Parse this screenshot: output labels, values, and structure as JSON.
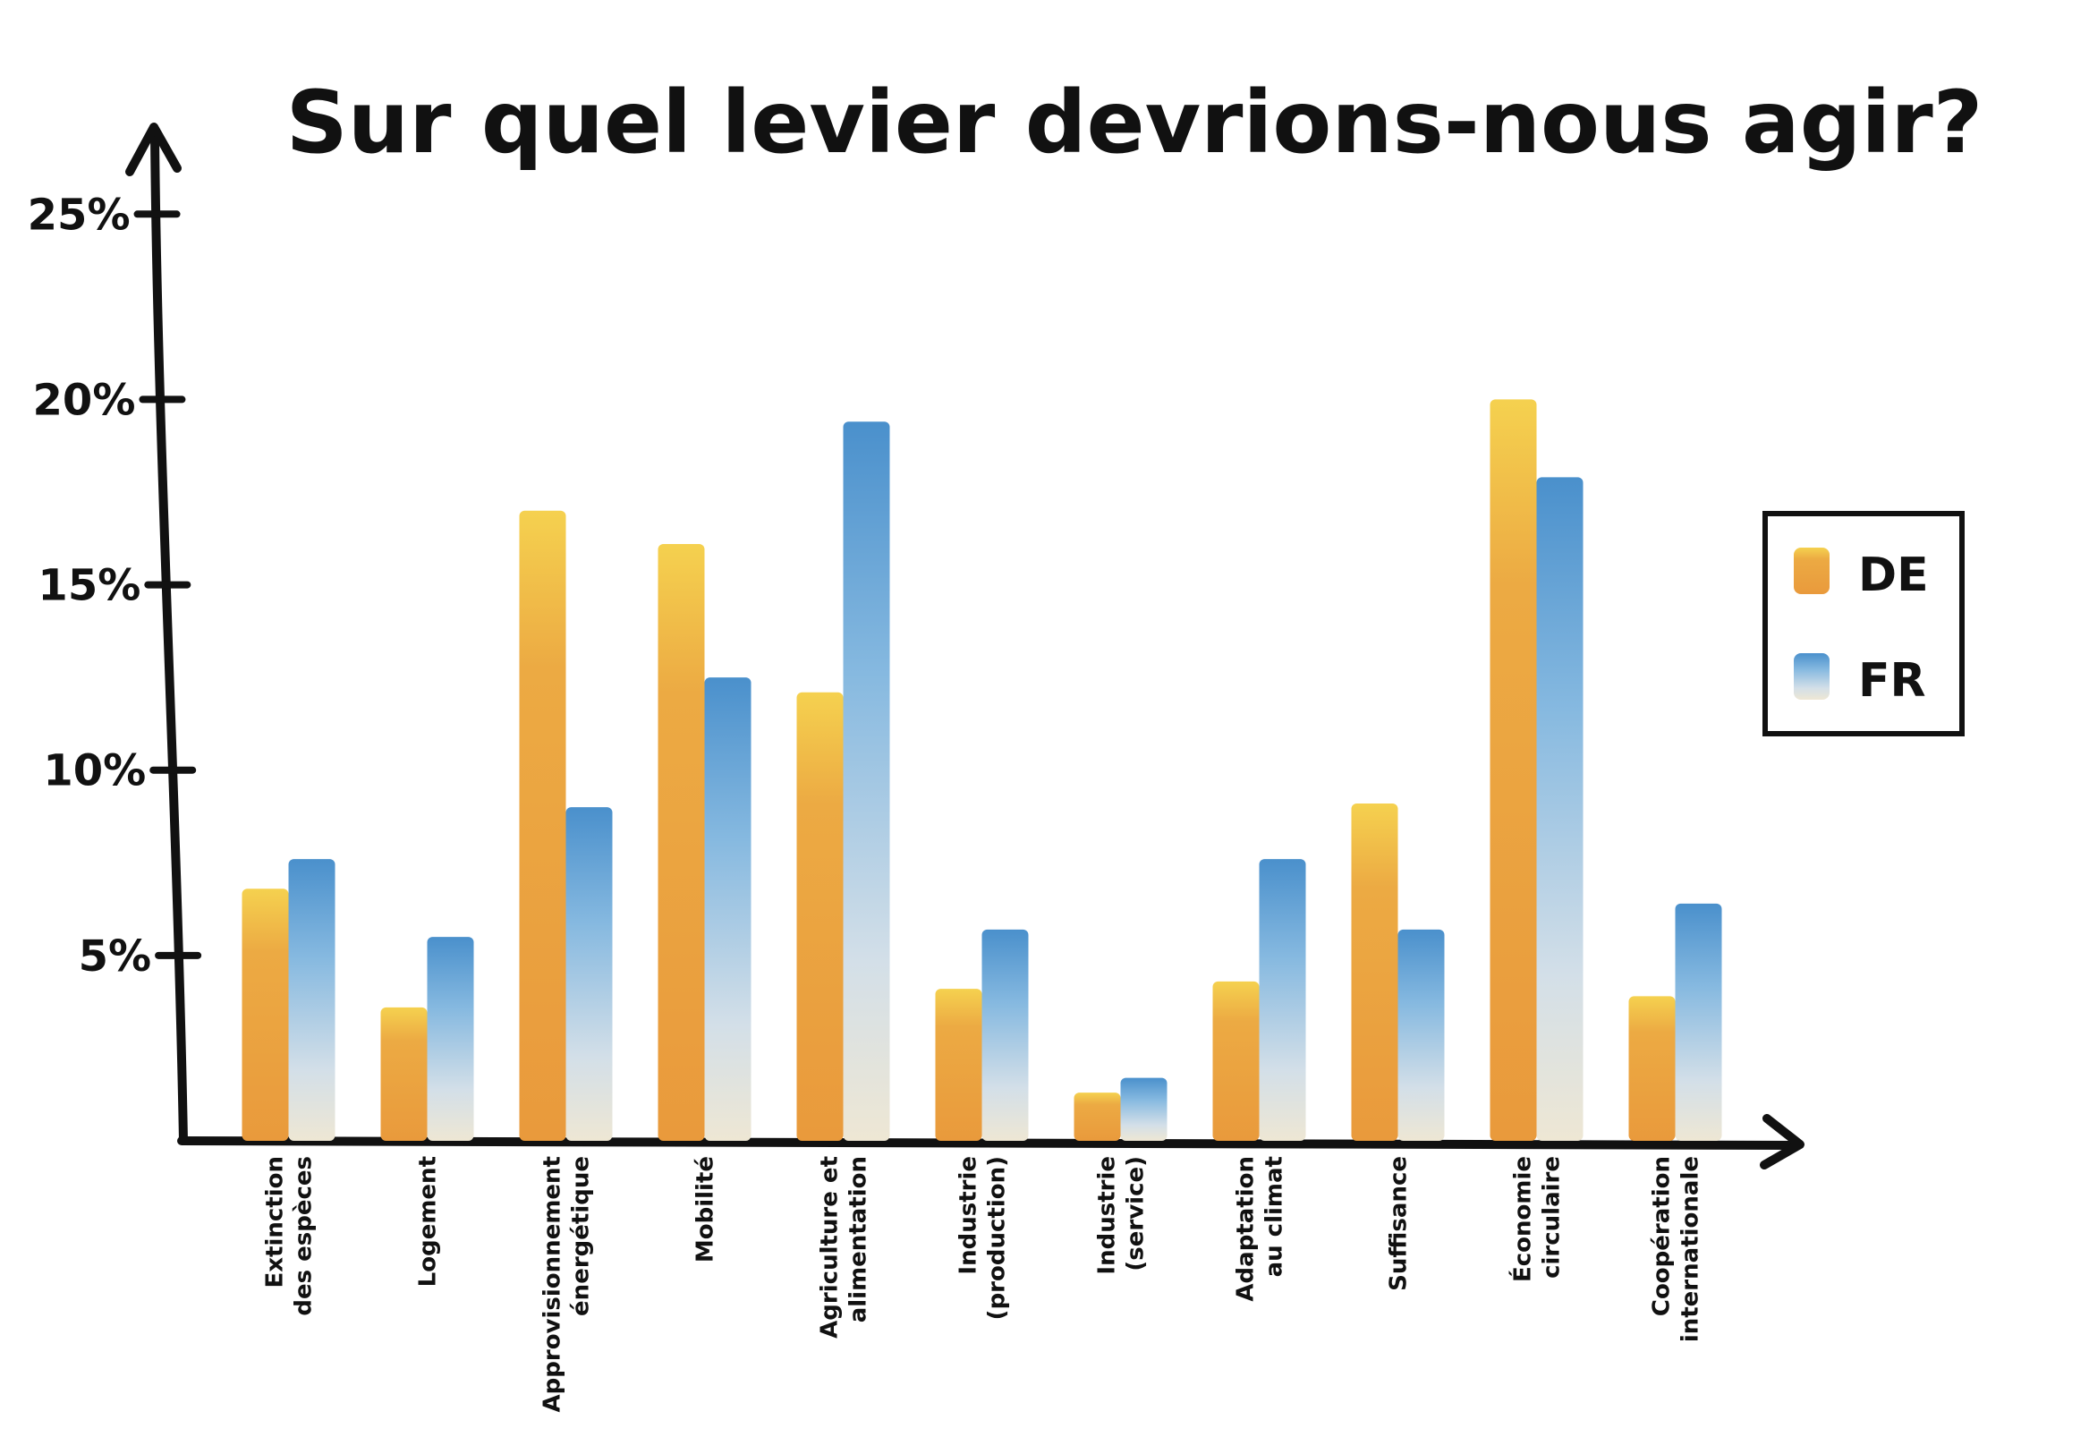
{
  "chart_data": {
    "type": "bar",
    "title": "Sur quel levier devrions-nous agir?",
    "categories": [
      [
        "Extinction",
        "des espèces"
      ],
      [
        "Logement"
      ],
      [
        "Approvisionnement",
        "énergétique"
      ],
      [
        "Mobilité"
      ],
      [
        "Agriculture et",
        "alimentation"
      ],
      [
        "Industrie",
        "(production)"
      ],
      [
        "Industrie",
        "(service)"
      ],
      [
        "Adaptation",
        "au climat"
      ],
      [
        "Suffisance"
      ],
      [
        "Économie",
        "circulaire"
      ],
      [
        "Coopération",
        "internationale"
      ]
    ],
    "series": [
      {
        "name": "DE",
        "values": [
          6.8,
          3.6,
          17.0,
          16.1,
          12.1,
          4.1,
          1.3,
          4.3,
          9.1,
          20.0,
          3.9
        ]
      },
      {
        "name": "FR",
        "values": [
          7.6,
          5.5,
          9.0,
          12.5,
          19.4,
          5.7,
          1.7,
          7.6,
          5.7,
          17.9,
          6.4
        ]
      }
    ],
    "yticks": [
      "5%",
      "10%",
      "15%",
      "20%",
      "25%"
    ],
    "ytick_values": [
      5,
      10,
      15,
      20,
      25
    ],
    "ylim": [
      0,
      28
    ],
    "xlabel": "",
    "ylabel": "",
    "grid": false,
    "legend": "right",
    "colors": {
      "DE_top": "#f5d14f",
      "DE_bottom": "#e99a3c",
      "FR_top": "#4a90cc",
      "FR_bottom": "#eee7d4"
    }
  }
}
